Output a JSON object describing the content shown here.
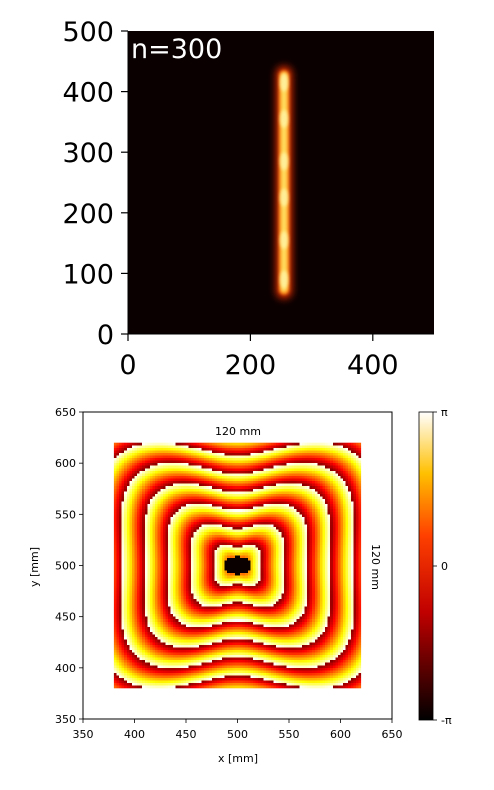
{
  "chart_data": [
    {
      "type": "heatmap",
      "annotation": "n=300",
      "xlim": [
        0,
        500
      ],
      "ylim": [
        0,
        500
      ],
      "xticks": [
        "0",
        "200",
        "400"
      ],
      "yticks": [
        "0",
        "100",
        "200",
        "300",
        "400",
        "500"
      ],
      "colormap": "hot",
      "bar": {
        "x_center": 255,
        "y_range": [
          65,
          435
        ],
        "bright_spots_y": [
          90,
          155,
          225,
          285,
          355,
          415
        ]
      },
      "colors": {
        "background": "#0a0000",
        "core": "#ffe060",
        "glow": "#ff3300"
      }
    },
    {
      "type": "heatmap",
      "xlabel": "x [mm]",
      "ylabel": "y [mm]",
      "xlim": [
        350,
        650
      ],
      "ylim": [
        350,
        650
      ],
      "xticks": [
        "350",
        "400",
        "450",
        "500",
        "550",
        "600",
        "650"
      ],
      "yticks": [
        "350",
        "400",
        "450",
        "500",
        "550",
        "600",
        "650"
      ],
      "width_label": "120 mm",
      "height_label": "120 mm",
      "square": {
        "x_range": [
          380,
          620
        ],
        "y_range": [
          380,
          620
        ]
      },
      "center": [
        500,
        500
      ],
      "colormap": "hot",
      "colorbar": {
        "labels": [
          "π",
          "0",
          "-π"
        ]
      }
    }
  ]
}
